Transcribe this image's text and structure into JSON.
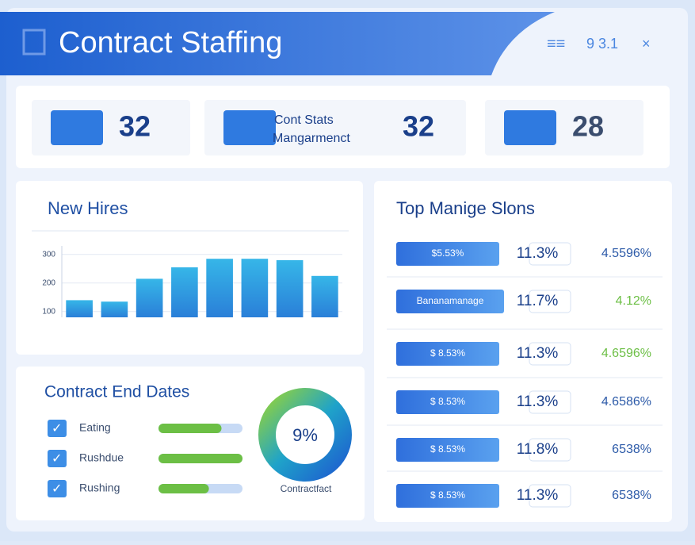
{
  "header": {
    "title": "Contract Staffing",
    "status": "9 3.1"
  },
  "stats": [
    {
      "value": 32
    },
    {
      "label_1": "Cont Stats",
      "label_2": "Mangarmenct",
      "value": 32
    },
    {
      "value": 28
    }
  ],
  "new_hires": {
    "title": "New Hires",
    "yticks": [
      300,
      200,
      100
    ],
    "ylim": [
      80,
      330
    ],
    "categories": [
      null,
      null,
      null,
      null,
      null,
      null,
      null,
      null
    ],
    "values": [
      140,
      135,
      215,
      255,
      285,
      285,
      280,
      225
    ]
  },
  "contract_end_dates": {
    "title": "Contract End Dates",
    "rows": [
      {
        "label": "Eating",
        "progress": 0.75
      },
      {
        "label": "Rushdue",
        "progress": 1
      },
      {
        "label": "Rushing",
        "progress": 0.6
      }
    ],
    "donut_value": "9%",
    "donut_label": "Contractfact"
  },
  "top_panel": {
    "title": "Top Manige Slons",
    "rows": [
      [
        "$5.53%",
        "11.3%",
        "4.5596%"
      ],
      [
        "Bananamanage",
        "11.7%",
        "4.12%"
      ],
      [
        "$ 8.53%",
        "11.3%",
        "4.6596%"
      ],
      [
        "$ 8.53%",
        "11.3%",
        "4.6586%"
      ],
      [
        "$ 8.53%",
        "11.8%",
        "6538%"
      ],
      [
        "$ 8.53%",
        "11.3%",
        "6538%"
      ]
    ]
  }
}
